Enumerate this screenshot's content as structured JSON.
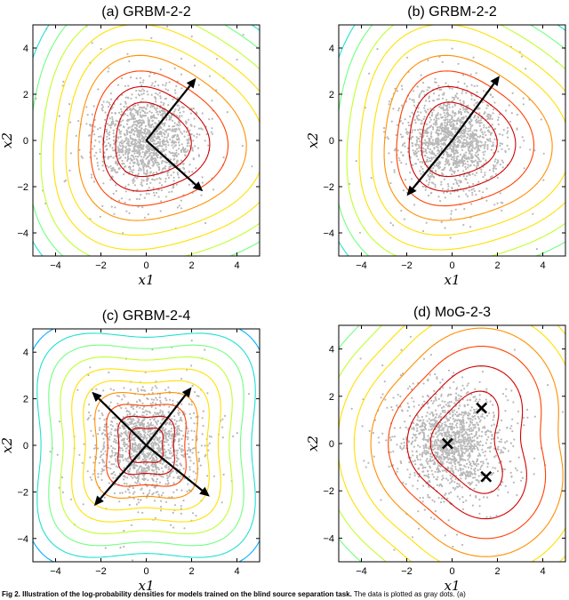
{
  "chart_data": [
    {
      "type": "contour",
      "title": "(a) GRBM-2-2",
      "xlabel": "x1",
      "ylabel": "x2",
      "xlim": [
        -5,
        5
      ],
      "ylim": [
        -5,
        5
      ],
      "xticks": [
        -4,
        -2,
        0,
        2,
        4
      ],
      "yticks": [
        -4,
        -2,
        0,
        2,
        4
      ],
      "grid": false,
      "model": "grbm",
      "arrows": [
        [
          0,
          0,
          2.2,
          2.7
        ],
        [
          0,
          0,
          2.5,
          -2.2
        ]
      ],
      "markers": []
    },
    {
      "type": "contour",
      "title": "(b) GRBM-2-2",
      "xlabel": "x1",
      "ylabel": "x2",
      "xlim": [
        -5,
        5
      ],
      "ylim": [
        -5,
        5
      ],
      "xticks": [
        -4,
        -2,
        0,
        2,
        4
      ],
      "yticks": [
        -4,
        -2,
        0,
        2,
        4
      ],
      "grid": false,
      "model": "grbm",
      "arrows": [
        [
          0,
          0,
          2.1,
          2.8
        ],
        [
          0,
          0,
          -2.0,
          -2.4
        ]
      ],
      "markers": []
    },
    {
      "type": "contour",
      "title": "(c) GRBM-2-4",
      "xlabel": "x1",
      "ylabel": "x2",
      "xlim": [
        -5,
        5
      ],
      "ylim": [
        -5,
        5
      ],
      "xticks": [
        -4,
        -2,
        0,
        2,
        4
      ],
      "yticks": [
        -4,
        -2,
        0,
        2,
        4
      ],
      "grid": false,
      "model": "grbm4",
      "arrows": [
        [
          0,
          0,
          2.0,
          2.5
        ],
        [
          0,
          0,
          2.8,
          -2.2
        ],
        [
          0,
          0,
          -2.4,
          2.3
        ],
        [
          0,
          0,
          -2.3,
          -2.6
        ]
      ],
      "markers": []
    },
    {
      "type": "contour",
      "title": "(d) MoG-2-3",
      "xlabel": "x1",
      "ylabel": "x2",
      "xlim": [
        -5,
        5
      ],
      "ylim": [
        -5,
        5
      ],
      "xticks": [
        -4,
        -2,
        0,
        2,
        4
      ],
      "yticks": [
        -4,
        -2,
        0,
        2,
        4
      ],
      "grid": false,
      "model": "mog",
      "arrows": [],
      "markers": [
        [
          -0.2,
          0.0
        ],
        [
          1.3,
          1.5
        ],
        [
          1.5,
          -1.4
        ]
      ]
    }
  ],
  "colors": {
    "data_points": "#b8b8b8",
    "arrows": "#000000",
    "contour_ramp": [
      "#000080",
      "#0000d0",
      "#1060ff",
      "#00b0ff",
      "#20e0d0",
      "#70ff80",
      "#c0ff30",
      "#ffe000",
      "#ff9000",
      "#ff4000",
      "#d00000"
    ]
  },
  "caption": {
    "bold": "Fig 2. Illustration of the log-probability densities for models trained on the blind source separation task.",
    "rest": " The data is plotted as gray dots. (a)"
  }
}
